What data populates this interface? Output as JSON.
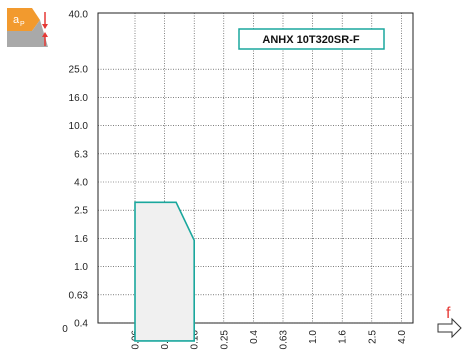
{
  "chart_data": {
    "type": "area",
    "title": "ANHX 10T320SR-F",
    "xlabel": "f",
    "ylabel": "a",
    "ylabel_subscript": "P",
    "x_ticks": [
      "0.06",
      "0.10",
      "0.16",
      "0.25",
      "0.4",
      "0.63",
      "1.0",
      "1.6",
      "2.5",
      "4.0"
    ],
    "y_ticks": [
      "40.0",
      "25.0",
      "16.0",
      "10.0",
      "6.3",
      "4.0",
      "2.5",
      "1.6",
      "1.0",
      "0.63",
      "0.4"
    ],
    "origin_label": "0",
    "grid": true,
    "series": [
      {
        "region": {
          "x": [
            0.06,
            0.06,
            0.12,
            0.16,
            0.16
          ],
          "y": [
            0.3,
            2.85,
            2.85,
            1.55,
            0.3
          ]
        }
      }
    ]
  },
  "colors": {
    "accent": "#1aa79d",
    "region_fill": "#f0f0f0",
    "icon_orange": "#f29a2e",
    "arrow_red": "#e53935"
  }
}
